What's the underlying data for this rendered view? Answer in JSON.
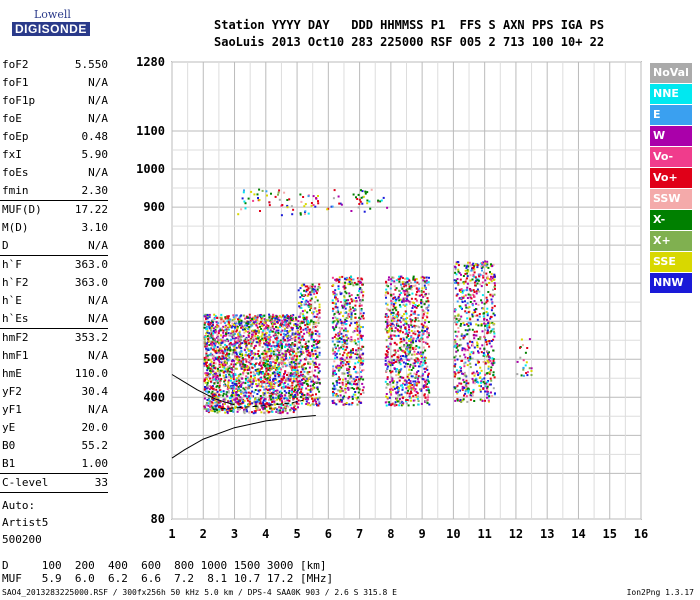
{
  "logo": {
    "line1": "Lowell",
    "line2": "DIGISONDE"
  },
  "header": {
    "line1": "Station YYYY DAY   DDD HHMMSS P1  FFS S AXN PPS IGA PS",
    "line2": "SaoLuis 2013 Oct10 283 225000 RSF 005 2 713 100 10+ 22"
  },
  "params": {
    "group1": [
      {
        "label": "foF2",
        "value": "5.550"
      },
      {
        "label": "foF1",
        "value": "N/A"
      },
      {
        "label": "foF1p",
        "value": "N/A"
      },
      {
        "label": "foE",
        "value": "N/A"
      },
      {
        "label": "foEp",
        "value": "0.48"
      },
      {
        "label": "fxI",
        "value": "5.90"
      },
      {
        "label": "foEs",
        "value": "N/A"
      },
      {
        "label": "fmin",
        "value": "2.30"
      }
    ],
    "group2": [
      {
        "label": "MUF(D)",
        "value": "17.22"
      },
      {
        "label": "M(D)",
        "value": "3.10"
      },
      {
        "label": "D",
        "value": "N/A"
      }
    ],
    "group3": [
      {
        "label": "h`F",
        "value": "363.0"
      },
      {
        "label": "h`F2",
        "value": "363.0"
      },
      {
        "label": "h`E",
        "value": "N/A"
      },
      {
        "label": "h`Es",
        "value": "N/A"
      }
    ],
    "group4": [
      {
        "label": "hmF2",
        "value": "353.2"
      },
      {
        "label": "hmF1",
        "value": "N/A"
      },
      {
        "label": "hmE",
        "value": "110.0"
      },
      {
        "label": "yF2",
        "value": "30.4"
      },
      {
        "label": "yF1",
        "value": "N/A"
      },
      {
        "label": "yE",
        "value": "20.0"
      },
      {
        "label": "B0",
        "value": "55.2"
      },
      {
        "label": "B1",
        "value": "1.00"
      }
    ],
    "clevel": {
      "label": "C-level",
      "value": "33"
    },
    "auto": [
      "Auto:",
      "Artist5",
      "500200"
    ]
  },
  "legend": [
    {
      "label": "NoVal",
      "bg": "#aaaaaa",
      "fg": "#ffffff"
    },
    {
      "label": "NNE",
      "bg": "#00e8f0",
      "fg": "#ffffff"
    },
    {
      "label": "E",
      "bg": "#3aa0f0",
      "fg": "#ffffff"
    },
    {
      "label": "W",
      "bg": "#aa00aa",
      "fg": "#ffffff"
    },
    {
      "label": "Vo-",
      "bg": "#f03c8c",
      "fg": "#ffffff"
    },
    {
      "label": "Vo+",
      "bg": "#e00018",
      "fg": "#ffffff"
    },
    {
      "label": "SSW",
      "bg": "#f4aaaa",
      "fg": "#ffffff"
    },
    {
      "label": "X-",
      "bg": "#008000",
      "fg": "#ffffff"
    },
    {
      "label": "X+",
      "bg": "#80b050",
      "fg": "#ffffff"
    },
    {
      "label": "SSE",
      "bg": "#d8d800",
      "fg": "#ffffff"
    },
    {
      "label": "NNW",
      "bg": "#1a1ad8",
      "fg": "#ffffff"
    }
  ],
  "bottom": {
    "line1": "D     100  200  400  600  800 1000 1500 3000 [km]",
    "line2": "MUF   5.9  6.0  6.2  6.6  7.2  8.1 10.7 17.2 [MHz]"
  },
  "footer": {
    "left": "SAO4_2013283225000.RSF / 300fx256h 50 kHz 5.0 km / DPS-4 SAA0K 903 / 2.6 S 315.8 E",
    "right": "Ion2Png 1.3.17"
  },
  "chart_data": {
    "type": "scatter",
    "xlim": [
      1,
      16
    ],
    "ylim": [
      80,
      1280
    ],
    "x_ticks": [
      1,
      2,
      3,
      4,
      5,
      6,
      7,
      8,
      9,
      10,
      11,
      12,
      13,
      14,
      15,
      16
    ],
    "y_ticks": [
      80,
      200,
      300,
      400,
      500,
      600,
      700,
      800,
      900,
      1000,
      1100,
      1280
    ],
    "xlabel": "",
    "ylabel": "",
    "grid": true,
    "clusters": [
      {
        "x": [
          2.0,
          5.0
        ],
        "y": [
          360,
          620
        ],
        "density": 1.0
      },
      {
        "x": [
          5.0,
          5.7
        ],
        "y": [
          380,
          700
        ],
        "density": 0.65
      },
      {
        "x": [
          6.1,
          7.1
        ],
        "y": [
          380,
          720
        ],
        "density": 0.55
      },
      {
        "x": [
          7.8,
          9.2
        ],
        "y": [
          380,
          720
        ],
        "density": 0.6
      },
      {
        "x": [
          10.0,
          11.3
        ],
        "y": [
          390,
          760
        ],
        "density": 0.45
      },
      {
        "x": [
          3.0,
          8.0
        ],
        "y": [
          880,
          950
        ],
        "density": 0.1
      },
      {
        "x": [
          12.0,
          12.5
        ],
        "y": [
          450,
          560
        ],
        "density": 0.15
      }
    ],
    "trace_series": [
      {
        "x": [
          1.0,
          1.4,
          2.0,
          3.0,
          4.0,
          5.0,
          5.6
        ],
        "y": [
          240,
          262,
          290,
          320,
          338,
          348,
          352
        ]
      },
      {
        "x": [
          2.3,
          3.0,
          4.0,
          4.8,
          5.2
        ],
        "y": [
          368,
          372,
          378,
          385,
          392
        ]
      },
      {
        "x": [
          1.0,
          1.8,
          2.4,
          3.0
        ],
        "y": [
          460,
          420,
          395,
          380
        ]
      }
    ]
  }
}
